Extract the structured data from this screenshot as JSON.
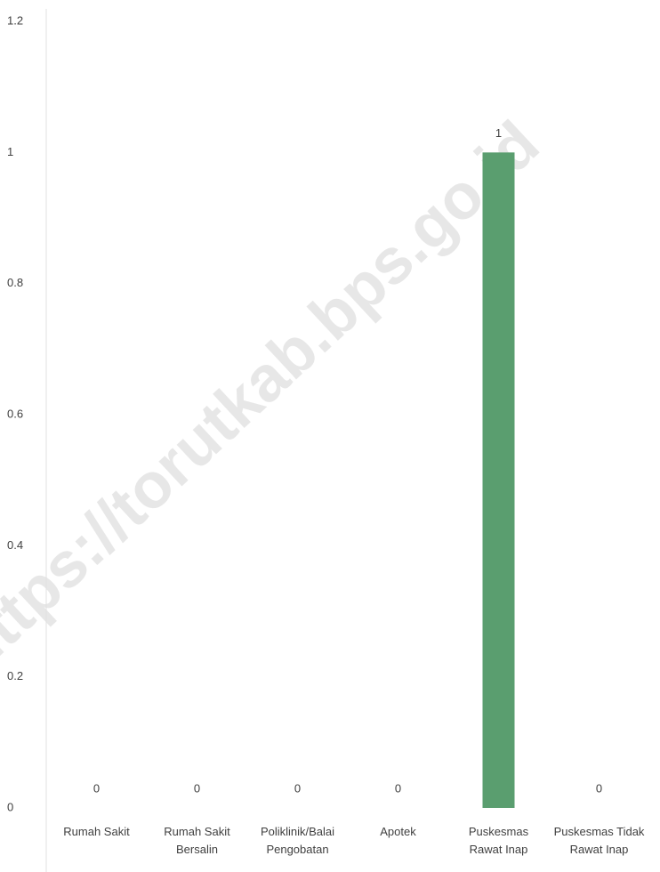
{
  "chart_data": {
    "type": "bar",
    "categories": [
      "Rumah Sakit",
      "Rumah Sakit Bersalin",
      "Poliklinik/Balai Pengobatan",
      "Apotek",
      "Puskesmas Rawat Inap",
      "Puskesmas Tidak Rawat Inap"
    ],
    "values": [
      0,
      0,
      0,
      0,
      1,
      0
    ],
    "color": "#5a9e6f",
    "ylim": [
      0,
      1.2
    ],
    "yticks": [
      0,
      0.2,
      0.4,
      0.6,
      0.8,
      1,
      1.2
    ],
    "grid": false,
    "watermark": "https://torutkab.bps.go.id"
  }
}
